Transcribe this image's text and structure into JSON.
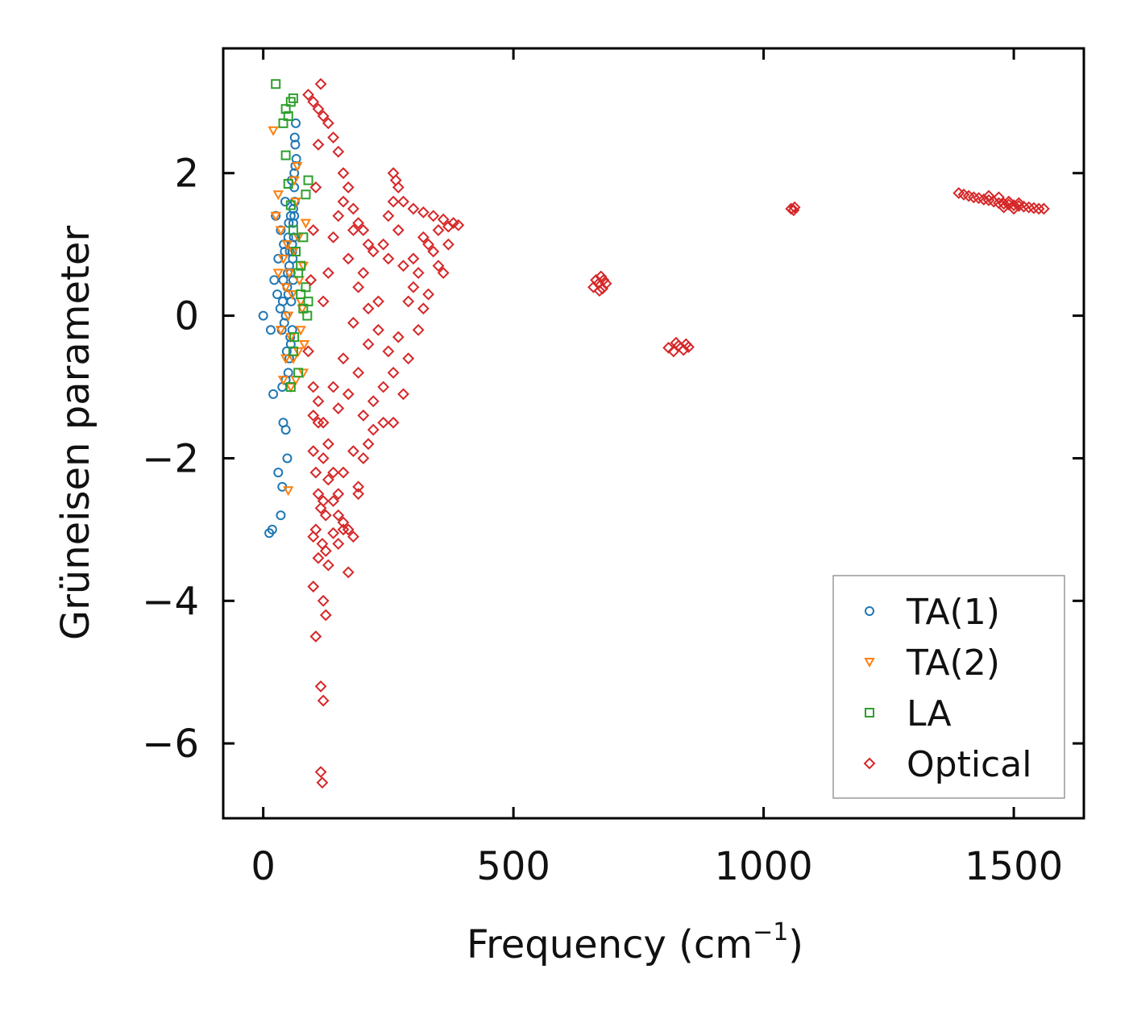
{
  "chart_data": {
    "type": "scatter",
    "title": "",
    "xlabel": "Frequency (cm",
    "xlabel_sup": "−1",
    "xlabel_end": ")",
    "ylabel": "Grüneisen parameter",
    "xlim": [
      -80,
      1640
    ],
    "ylim": [
      -7.05,
      3.75
    ],
    "xticks": [
      0,
      500,
      1000,
      1500
    ],
    "xtick_labels": [
      "0",
      "500",
      "1000",
      "1500"
    ],
    "yticks": [
      2,
      0,
      -2,
      -4,
      -6
    ],
    "ytick_labels": [
      "2",
      "0",
      "−2",
      "−4",
      "−6"
    ],
    "grid": false,
    "legend_position": "lower-right",
    "series": [
      {
        "name": "TA(1)",
        "marker": "circle",
        "color": "#1f77b4",
        "points": [
          [
            0,
            0
          ],
          [
            15,
            -0.2
          ],
          [
            20,
            -1.1
          ],
          [
            25,
            1.4
          ],
          [
            30,
            -2.2
          ],
          [
            35,
            -2.8
          ],
          [
            38,
            -2.4
          ],
          [
            40,
            -1.5
          ],
          [
            45,
            -1.6
          ],
          [
            48,
            -2.0
          ],
          [
            50,
            -0.8
          ],
          [
            55,
            -0.4
          ],
          [
            30,
            0.8
          ],
          [
            35,
            1.2
          ],
          [
            40,
            0.5
          ],
          [
            45,
            0.0
          ],
          [
            50,
            0.3
          ],
          [
            52,
            -0.6
          ],
          [
            55,
            0.6
          ],
          [
            58,
            1.0
          ],
          [
            60,
            1.5
          ],
          [
            62,
            2.0
          ],
          [
            64,
            2.4
          ],
          [
            65,
            2.7
          ],
          [
            62,
            1.8
          ],
          [
            60,
            1.3
          ],
          [
            58,
            0.9
          ],
          [
            56,
            0.2
          ],
          [
            54,
            -0.3
          ],
          [
            52,
            0.7
          ],
          [
            50,
            1.1
          ],
          [
            48,
            0.4
          ],
          [
            44,
            1.6
          ],
          [
            42,
            -0.1
          ],
          [
            38,
            -1.0
          ],
          [
            34,
            0.1
          ],
          [
            28,
            0.3
          ],
          [
            22,
            0.5
          ],
          [
            18,
            -3.0
          ],
          [
            12,
            -3.05
          ],
          [
            66,
            2.2
          ],
          [
            63,
            1.6
          ],
          [
            61,
            1.1
          ],
          [
            59,
            0.8
          ],
          [
            57,
            1.9
          ],
          [
            55,
            1.4
          ],
          [
            53,
            0.9
          ],
          [
            51,
            1.3
          ],
          [
            49,
            0.6
          ],
          [
            47,
            -0.5
          ],
          [
            45,
            -0.9
          ],
          [
            43,
            0.9
          ],
          [
            41,
            1.0
          ],
          [
            39,
            0.2
          ],
          [
            37,
            -0.2
          ],
          [
            63,
            2.5
          ],
          [
            64,
            2.1
          ],
          [
            62,
            1.4
          ],
          [
            60,
            0.5
          ],
          [
            58,
            -0.2
          ]
        ]
      },
      {
        "name": "TA(2)",
        "marker": "triangle-down",
        "color": "#ff7f0e",
        "points": [
          [
            20,
            2.6
          ],
          [
            25,
            1.4
          ],
          [
            30,
            1.7
          ],
          [
            35,
            1.2
          ],
          [
            40,
            0.8
          ],
          [
            45,
            0.4
          ],
          [
            50,
            0.0
          ],
          [
            55,
            -0.3
          ],
          [
            60,
            -0.6
          ],
          [
            65,
            -0.9
          ],
          [
            70,
            -0.5
          ],
          [
            75,
            0.2
          ],
          [
            80,
            0.7
          ],
          [
            85,
            1.3
          ],
          [
            40,
            -0.9
          ],
          [
            50,
            -2.45
          ],
          [
            55,
            -1.0
          ],
          [
            60,
            0.9
          ],
          [
            65,
            1.6
          ],
          [
            70,
            1.1
          ],
          [
            75,
            -0.2
          ],
          [
            80,
            -0.8
          ],
          [
            45,
            -0.6
          ],
          [
            35,
            -0.2
          ],
          [
            30,
            0.6
          ],
          [
            62,
            1.9
          ],
          [
            68,
            2.1
          ],
          [
            72,
            0.5
          ],
          [
            78,
            0.1
          ],
          [
            82,
            -0.4
          ],
          [
            58,
            0.3
          ],
          [
            52,
            0.6
          ],
          [
            48,
            1.0
          ]
        ]
      },
      {
        "name": "LA",
        "marker": "square",
        "color": "#2ca02c",
        "points": [
          [
            25,
            3.25
          ],
          [
            40,
            2.7
          ],
          [
            45,
            2.9
          ],
          [
            50,
            2.8
          ],
          [
            55,
            3.0
          ],
          [
            60,
            3.05
          ],
          [
            45,
            2.25
          ],
          [
            50,
            1.85
          ],
          [
            55,
            1.55
          ],
          [
            60,
            1.2
          ],
          [
            65,
            0.9
          ],
          [
            70,
            0.6
          ],
          [
            75,
            0.3
          ],
          [
            80,
            0.1
          ],
          [
            85,
            1.7
          ],
          [
            90,
            1.9
          ],
          [
            88,
            0.0
          ],
          [
            55,
            -1.0
          ],
          [
            60,
            -0.5
          ],
          [
            62,
            -0.3
          ],
          [
            70,
            -0.8
          ],
          [
            75,
            0.7
          ],
          [
            80,
            1.1
          ],
          [
            85,
            0.4
          ],
          [
            90,
            0.2
          ]
        ]
      },
      {
        "name": "Optical",
        "marker": "diamond",
        "color": "#d62728",
        "points": [
          [
            115,
            3.25
          ],
          [
            90,
            3.1
          ],
          [
            100,
            3.0
          ],
          [
            110,
            2.9
          ],
          [
            120,
            2.8
          ],
          [
            130,
            2.7
          ],
          [
            140,
            2.5
          ],
          [
            150,
            2.3
          ],
          [
            160,
            2.0
          ],
          [
            170,
            1.8
          ],
          [
            180,
            1.5
          ],
          [
            190,
            1.3
          ],
          [
            200,
            1.2
          ],
          [
            210,
            1.0
          ],
          [
            220,
            0.9
          ],
          [
            240,
            1.0
          ],
          [
            250,
            1.4
          ],
          [
            260,
            2.0
          ],
          [
            270,
            1.8
          ],
          [
            280,
            1.6
          ],
          [
            300,
            1.5
          ],
          [
            320,
            1.45
          ],
          [
            340,
            1.4
          ],
          [
            360,
            1.35
          ],
          [
            380,
            1.3
          ],
          [
            100,
            -1.0
          ],
          [
            110,
            -1.5
          ],
          [
            120,
            -2.0
          ],
          [
            130,
            -2.3
          ],
          [
            140,
            -2.6
          ],
          [
            150,
            -2.8
          ],
          [
            160,
            -3.0
          ],
          [
            170,
            -3.0
          ],
          [
            180,
            -3.1
          ],
          [
            190,
            -2.5
          ],
          [
            200,
            -2.0
          ],
          [
            210,
            -1.8
          ],
          [
            220,
            -1.6
          ],
          [
            240,
            -1.5
          ],
          [
            260,
            -1.5
          ],
          [
            280,
            -1.1
          ],
          [
            100,
            -1.9
          ],
          [
            105,
            -2.2
          ],
          [
            110,
            -2.5
          ],
          [
            115,
            -2.7
          ],
          [
            120,
            -2.6
          ],
          [
            125,
            -2.8
          ],
          [
            118,
            -3.2
          ],
          [
            125,
            -3.3
          ],
          [
            130,
            -3.5
          ],
          [
            170,
            -3.6
          ],
          [
            100,
            -3.8
          ],
          [
            105,
            -4.5
          ],
          [
            120,
            -4.0
          ],
          [
            125,
            -4.2
          ],
          [
            115,
            -5.2
          ],
          [
            120,
            -5.4
          ],
          [
            115,
            -6.4
          ],
          [
            118,
            -6.55
          ],
          [
            105,
            -3.0
          ],
          [
            100,
            -3.1
          ],
          [
            110,
            -3.4
          ],
          [
            150,
            -3.2
          ],
          [
            140,
            -3.05
          ],
          [
            160,
            -2.9
          ],
          [
            190,
            -2.4
          ],
          [
            290,
            -0.6
          ],
          [
            310,
            -0.2
          ],
          [
            330,
            0.3
          ],
          [
            350,
            0.7
          ],
          [
            370,
            1.0
          ],
          [
            300,
            0.8
          ],
          [
            320,
            1.1
          ],
          [
            340,
            0.9
          ],
          [
            360,
            0.6
          ],
          [
            260,
            -0.8
          ],
          [
            240,
            -1.0
          ],
          [
            220,
            -1.2
          ],
          [
            200,
            -1.4
          ],
          [
            180,
            -1.9
          ],
          [
            160,
            -2.2
          ],
          [
            150,
            -2.5
          ],
          [
            140,
            -2.2
          ],
          [
            130,
            -1.8
          ],
          [
            120,
            -1.5
          ],
          [
            110,
            -1.2
          ],
          [
            100,
            -1.4
          ],
          [
            90,
            -0.5
          ],
          [
            95,
            0.5
          ],
          [
            100,
            1.2
          ],
          [
            105,
            1.8
          ],
          [
            110,
            2.4
          ],
          [
            150,
            1.4
          ],
          [
            170,
            0.8
          ],
          [
            190,
            0.4
          ],
          [
            210,
            0.1
          ],
          [
            230,
            -0.2
          ],
          [
            250,
            -0.5
          ],
          [
            270,
            -0.3
          ],
          [
            290,
            0.2
          ],
          [
            310,
            0.6
          ],
          [
            330,
            1.0
          ],
          [
            350,
            1.2
          ],
          [
            370,
            1.25
          ],
          [
            390,
            1.27
          ],
          [
            270,
            1.2
          ],
          [
            280,
            0.7
          ],
          [
            300,
            0.4
          ],
          [
            320,
            0.1
          ],
          [
            200,
            0.6
          ],
          [
            180,
            -0.1
          ],
          [
            160,
            -0.6
          ],
          [
            140,
            -1.0
          ],
          [
            120,
            0.2
          ],
          [
            130,
            0.6
          ],
          [
            140,
            1.1
          ],
          [
            160,
            1.6
          ],
          [
            180,
            1.2
          ],
          [
            150,
            -1.3
          ],
          [
            170,
            -1.1
          ],
          [
            190,
            -0.8
          ],
          [
            210,
            -0.4
          ],
          [
            230,
            0.2
          ],
          [
            250,
            0.8
          ],
          [
            260,
            1.6
          ],
          [
            265,
            1.9
          ],
          [
            660,
            0.4
          ],
          [
            665,
            0.5
          ],
          [
            670,
            0.45
          ],
          [
            675,
            0.55
          ],
          [
            680,
            0.5
          ],
          [
            685,
            0.45
          ],
          [
            672,
            0.35
          ],
          [
            678,
            0.38
          ],
          [
            810,
            -0.45
          ],
          [
            820,
            -0.5
          ],
          [
            830,
            -0.42
          ],
          [
            840,
            -0.48
          ],
          [
            850,
            -0.44
          ],
          [
            825,
            -0.38
          ],
          [
            845,
            -0.4
          ],
          [
            1055,
            1.5
          ],
          [
            1060,
            1.48
          ],
          [
            1062,
            1.52
          ],
          [
            1390,
            1.72
          ],
          [
            1400,
            1.7
          ],
          [
            1410,
            1.68
          ],
          [
            1420,
            1.66
          ],
          [
            1430,
            1.65
          ],
          [
            1440,
            1.63
          ],
          [
            1450,
            1.62
          ],
          [
            1460,
            1.6
          ],
          [
            1470,
            1.58
          ],
          [
            1480,
            1.57
          ],
          [
            1490,
            1.56
          ],
          [
            1500,
            1.55
          ],
          [
            1510,
            1.54
          ],
          [
            1520,
            1.53
          ],
          [
            1530,
            1.52
          ],
          [
            1540,
            1.51
          ],
          [
            1550,
            1.5
          ],
          [
            1560,
            1.5
          ],
          [
            1450,
            1.68
          ],
          [
            1470,
            1.66
          ],
          [
            1490,
            1.6
          ],
          [
            1510,
            1.58
          ],
          [
            1480,
            1.52
          ],
          [
            1500,
            1.5
          ]
        ]
      }
    ]
  }
}
